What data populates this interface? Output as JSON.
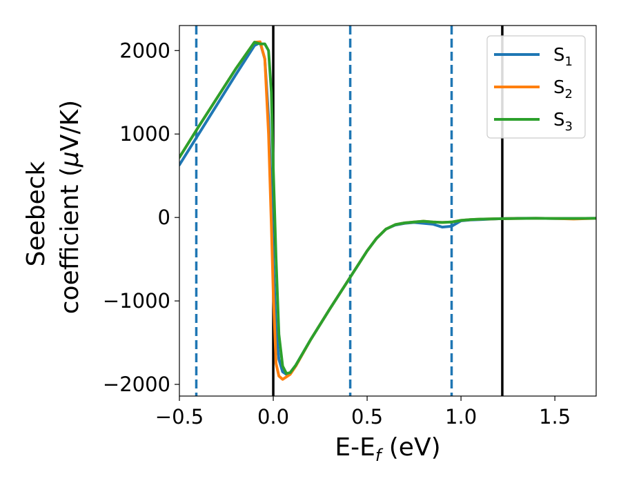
{
  "chart_data": {
    "type": "line",
    "xlabel_main": "E-E",
    "xlabel_sub": "f",
    "xlabel_unit": " (eV)",
    "ylabel_line1": "Seebeck",
    "ylabel_line2_pre": "coefficient  (",
    "ylabel_mu": "μ",
    "ylabel_line2_post": "V/K)",
    "xlim": [
      -0.5,
      1.72
    ],
    "ylim": [
      -2140,
      2300
    ],
    "xticks": [
      -0.5,
      0.0,
      0.5,
      1.0,
      1.5
    ],
    "xtick_labels": [
      "−0.5",
      "0.0",
      "0.5",
      "1.0",
      "1.5"
    ],
    "yticks": [
      -2000,
      -1000,
      0,
      1000,
      2000
    ],
    "ytick_labels": [
      "−2000",
      "−1000",
      "0",
      "1000",
      "2000"
    ],
    "grid": false,
    "legend_position": "top-right",
    "vlines_dashed": [
      -0.41,
      0.41,
      0.95
    ],
    "vlines_solid": [
      0.0,
      1.22
    ],
    "dashed_color": "#1f77b4",
    "solid_color": "#000000",
    "series": [
      {
        "name": "S",
        "sub": "1",
        "color": "#1f77b4",
        "x": [
          -0.5,
          -0.4,
          -0.3,
          -0.2,
          -0.1,
          -0.07,
          -0.045,
          -0.025,
          -0.01,
          0.0,
          0.015,
          0.03,
          0.05,
          0.07,
          0.09,
          0.12,
          0.2,
          0.3,
          0.4,
          0.5,
          0.55,
          0.6,
          0.65,
          0.7,
          0.75,
          0.8,
          0.85,
          0.9,
          0.95,
          1.0,
          1.05,
          1.1,
          1.2,
          1.3,
          1.4,
          1.5,
          1.6,
          1.72
        ],
        "y": [
          630,
          990,
          1350,
          1710,
          2060,
          2095,
          1900,
          1200,
          300,
          -500,
          -1350,
          -1700,
          -1850,
          -1880,
          -1860,
          -1770,
          -1460,
          -1100,
          -750,
          -400,
          -250,
          -140,
          -90,
          -70,
          -60,
          -70,
          -80,
          -115,
          -105,
          -40,
          -30,
          -25,
          -15,
          -10,
          -10,
          -12,
          -12,
          -10
        ]
      },
      {
        "name": "S",
        "sub": "2",
        "color": "#ff7f0e",
        "x": [
          -0.5,
          -0.4,
          -0.3,
          -0.2,
          -0.1,
          -0.07,
          -0.045,
          -0.025,
          -0.01,
          0.0,
          0.015,
          0.03,
          0.05,
          0.07,
          0.09,
          0.12,
          0.2,
          0.3,
          0.4,
          0.5,
          0.55,
          0.6,
          0.65,
          0.7,
          0.75,
          0.8,
          0.85,
          0.9,
          0.95,
          1.0,
          1.05,
          1.1,
          1.2,
          1.3,
          1.4,
          1.5,
          1.6,
          1.72
        ],
        "y": [
          720,
          1080,
          1430,
          1780,
          2100,
          2105,
          1900,
          1000,
          -100,
          -900,
          -1750,
          -1900,
          -1940,
          -1910,
          -1880,
          -1780,
          -1460,
          -1100,
          -750,
          -400,
          -250,
          -140,
          -85,
          -65,
          -55,
          -45,
          -55,
          -60,
          -55,
          -35,
          -25,
          -20,
          -15,
          -12,
          -10,
          -12,
          -18,
          -10
        ]
      },
      {
        "name": "S",
        "sub": "3",
        "color": "#2ca02c",
        "x": [
          -0.5,
          -0.4,
          -0.3,
          -0.2,
          -0.1,
          -0.07,
          -0.045,
          -0.025,
          -0.01,
          0.0,
          0.015,
          0.03,
          0.05,
          0.07,
          0.09,
          0.12,
          0.2,
          0.3,
          0.4,
          0.5,
          0.55,
          0.6,
          0.65,
          0.7,
          0.75,
          0.8,
          0.85,
          0.9,
          0.95,
          1.0,
          1.05,
          1.1,
          1.2,
          1.3,
          1.4,
          1.5,
          1.6,
          1.72
        ],
        "y": [
          720,
          1080,
          1430,
          1780,
          2100,
          2080,
          2080,
          2000,
          1500,
          600,
          -500,
          -1400,
          -1780,
          -1870,
          -1860,
          -1770,
          -1460,
          -1100,
          -750,
          -400,
          -250,
          -140,
          -85,
          -65,
          -55,
          -45,
          -55,
          -60,
          -55,
          -35,
          -25,
          -20,
          -15,
          -12,
          -10,
          -12,
          -12,
          -10
        ]
      }
    ]
  }
}
